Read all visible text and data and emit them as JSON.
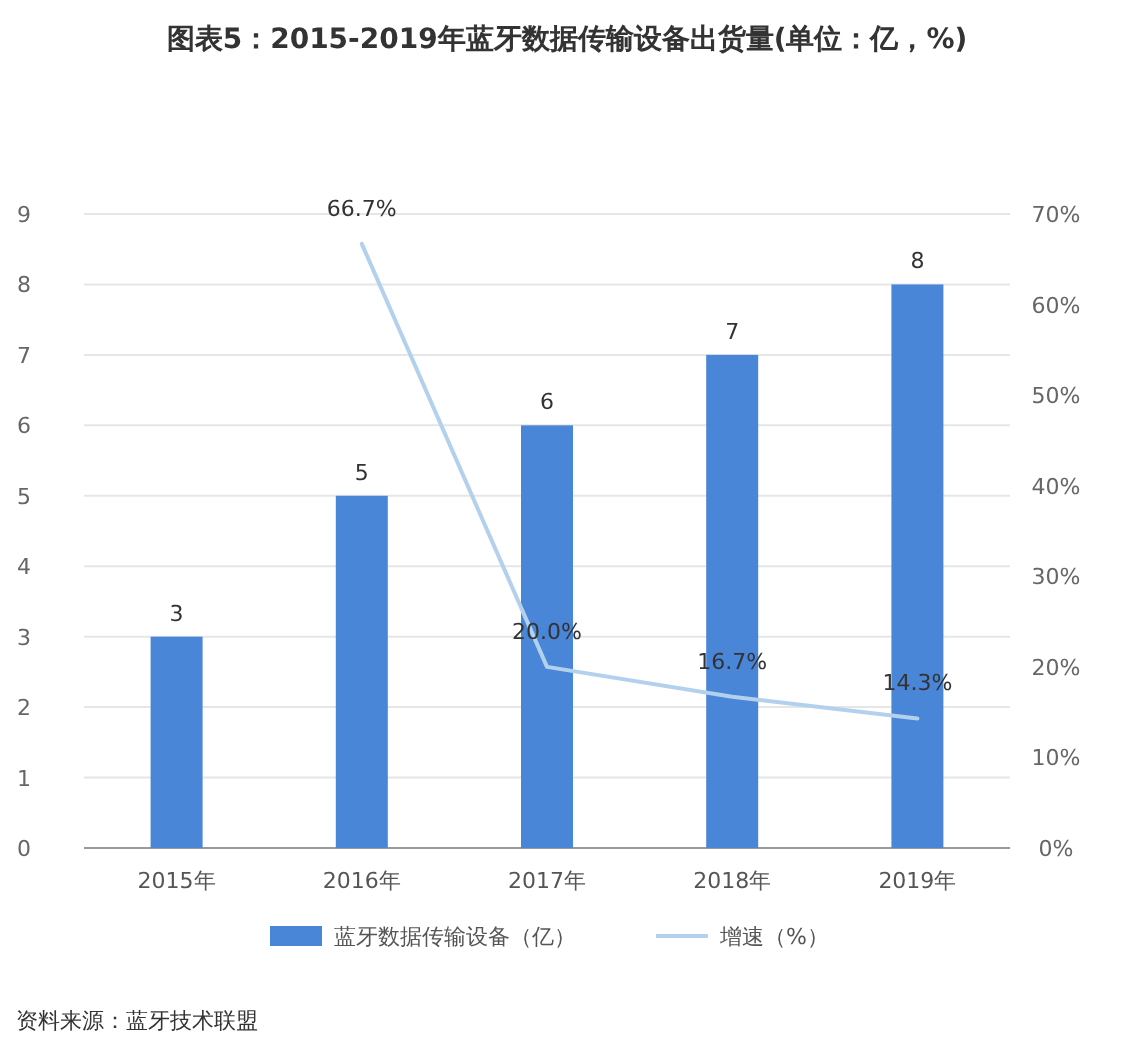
{
  "chart_data": {
    "type": "bar",
    "title": "图表5：2015-2019年蓝牙数据传输设备出货量(单位：亿，%)",
    "categories": [
      "2015年",
      "2016年",
      "2017年",
      "2018年",
      "2019年"
    ],
    "series": [
      {
        "name": "蓝牙数据传输设备（亿）",
        "color": "#4a86d8",
        "values": [
          3,
          5,
          6,
          7,
          8
        ],
        "value_labels": [
          "3",
          "5",
          "6",
          "7",
          "8"
        ]
      },
      {
        "name": "增速（%）",
        "type": "line",
        "axis": "y2",
        "color": "#b3d1ec",
        "values": [
          null,
          66.7,
          20.0,
          16.7,
          14.3
        ],
        "value_labels": [
          null,
          "66.7%",
          "20.0%",
          "16.7%",
          "14.3%"
        ]
      }
    ],
    "ylim": [
      0,
      9
    ],
    "yticks": [
      0,
      1,
      2,
      3,
      4,
      5,
      6,
      7,
      8,
      9
    ],
    "y2lim": [
      0,
      70
    ],
    "y2ticks": [
      {
        "value": 0,
        "label": "0%"
      },
      {
        "value": 10,
        "label": "10%"
      },
      {
        "value": 20,
        "label": "20%"
      },
      {
        "value": 30,
        "label": "30%"
      },
      {
        "value": 40,
        "label": "40%"
      },
      {
        "value": 50,
        "label": "50%"
      },
      {
        "value": 60,
        "label": "60%"
      },
      {
        "value": 70,
        "label": "70%"
      }
    ],
    "grid": "y",
    "legend": "bottom",
    "marker": "none",
    "line_style": "solid",
    "annotations": [
      "资料来源：蓝牙技术联盟"
    ]
  }
}
